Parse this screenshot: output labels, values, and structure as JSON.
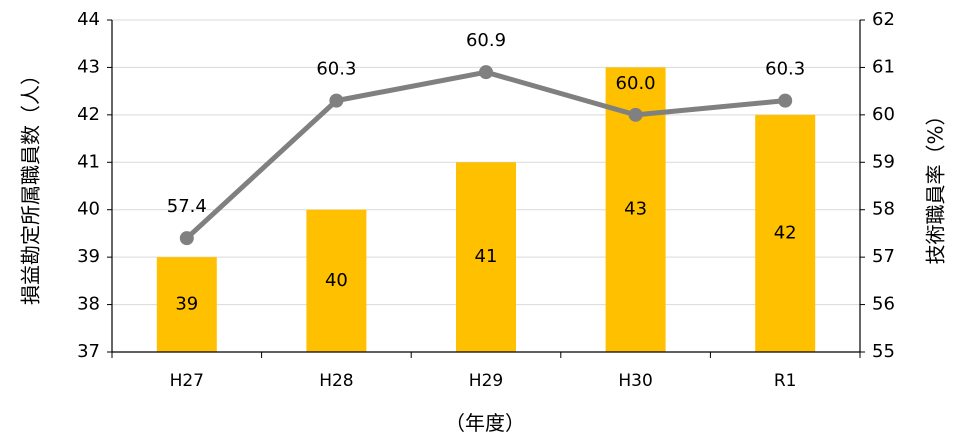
{
  "chart_data": {
    "type": "bar+line",
    "categories": [
      "H27",
      "H28",
      "H29",
      "H30",
      "R1"
    ],
    "series": [
      {
        "name": "損益勘定所属職員数",
        "type": "bar",
        "axis": "left",
        "values": [
          39,
          40,
          41,
          43,
          42
        ],
        "labels": [
          "39",
          "40",
          "41",
          "43",
          "42"
        ],
        "color": "#FFC000"
      },
      {
        "name": "技術職員率",
        "type": "line",
        "axis": "right",
        "values": [
          57.4,
          60.3,
          60.9,
          60.0,
          60.3
        ],
        "labels": [
          "57.4",
          "60.3",
          "60.9",
          "60.0",
          "60.3"
        ],
        "color": "#808080"
      }
    ],
    "xlabel": "（年度）",
    "ylabel_left": "損益勘定所属職員数（人）",
    "ylabel_right": "技術職員率（%）",
    "ylim_left": [
      37,
      44
    ],
    "ylim_right": [
      55,
      62
    ],
    "yticks_left": [
      "37",
      "38",
      "39",
      "40",
      "41",
      "42",
      "43",
      "44"
    ],
    "yticks_right": [
      "55",
      "56",
      "57",
      "58",
      "59",
      "60",
      "61",
      "62"
    ],
    "grid": true,
    "gridline_color": "#D9D9D9",
    "legend": "none"
  }
}
